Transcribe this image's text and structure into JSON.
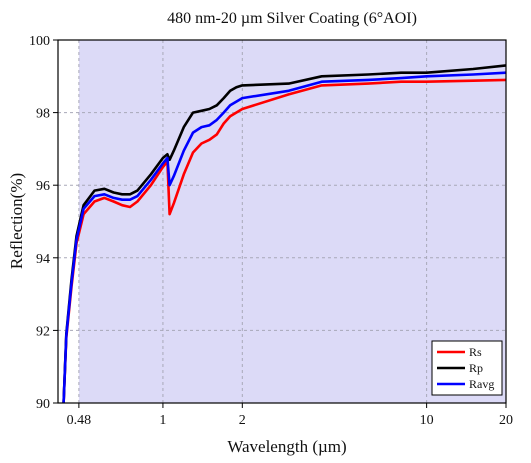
{
  "chart_data": {
    "type": "line",
    "title": "480 nm-20 µm Silver Coating (6°AOI)",
    "xlabel": "Wavelength (µm)",
    "ylabel": "Reflection(%)",
    "x_scale": "log",
    "xlim": [
      0.4,
      20
    ],
    "ylim": [
      90,
      100
    ],
    "x_ticks": [
      0.48,
      1,
      2,
      10,
      20
    ],
    "x_tick_labels": [
      "0.48",
      "1",
      "2",
      "10",
      "20"
    ],
    "y_ticks": [
      90,
      92,
      94,
      96,
      98,
      100
    ],
    "y_tick_labels": [
      "90",
      "92",
      "94",
      "96",
      "98",
      "100"
    ],
    "shaded_region": {
      "x_from": 0.48,
      "x_to": 20,
      "color": "#dcdaf7"
    },
    "grid": true,
    "legend_position": "bottom-right",
    "series": [
      {
        "name": "Rs",
        "color": "#ff0000",
        "points": [
          [
            0.42,
            90.0
          ],
          [
            0.43,
            91.8
          ],
          [
            0.45,
            93.2
          ],
          [
            0.47,
            94.4
          ],
          [
            0.5,
            95.2
          ],
          [
            0.55,
            95.55
          ],
          [
            0.6,
            95.65
          ],
          [
            0.65,
            95.55
          ],
          [
            0.7,
            95.45
          ],
          [
            0.75,
            95.4
          ],
          [
            0.8,
            95.55
          ],
          [
            0.9,
            96.0
          ],
          [
            1.0,
            96.5
          ],
          [
            1.04,
            96.65
          ],
          [
            1.06,
            95.2
          ],
          [
            1.1,
            95.5
          ],
          [
            1.2,
            96.3
          ],
          [
            1.3,
            96.9
          ],
          [
            1.4,
            97.15
          ],
          [
            1.5,
            97.25
          ],
          [
            1.6,
            97.4
          ],
          [
            1.7,
            97.7
          ],
          [
            1.8,
            97.9
          ],
          [
            2.0,
            98.1
          ],
          [
            3.0,
            98.5
          ],
          [
            4.0,
            98.75
          ],
          [
            6.0,
            98.8
          ],
          [
            8.0,
            98.85
          ],
          [
            10.0,
            98.85
          ],
          [
            15.0,
            98.88
          ],
          [
            20.0,
            98.9
          ]
        ]
      },
      {
        "name": "Rp",
        "color": "#000000",
        "points": [
          [
            0.42,
            90.0
          ],
          [
            0.43,
            91.9
          ],
          [
            0.45,
            93.4
          ],
          [
            0.47,
            94.6
          ],
          [
            0.5,
            95.45
          ],
          [
            0.55,
            95.85
          ],
          [
            0.6,
            95.9
          ],
          [
            0.65,
            95.8
          ],
          [
            0.7,
            95.75
          ],
          [
            0.75,
            95.75
          ],
          [
            0.8,
            95.85
          ],
          [
            0.9,
            96.3
          ],
          [
            1.0,
            96.75
          ],
          [
            1.04,
            96.85
          ],
          [
            1.06,
            96.7
          ],
          [
            1.1,
            96.95
          ],
          [
            1.2,
            97.6
          ],
          [
            1.3,
            98.0
          ],
          [
            1.4,
            98.05
          ],
          [
            1.5,
            98.1
          ],
          [
            1.6,
            98.2
          ],
          [
            1.7,
            98.4
          ],
          [
            1.8,
            98.6
          ],
          [
            1.9,
            98.7
          ],
          [
            2.0,
            98.75
          ],
          [
            3.0,
            98.8
          ],
          [
            4.0,
            99.0
          ],
          [
            6.0,
            99.05
          ],
          [
            8.0,
            99.1
          ],
          [
            10.0,
            99.1
          ],
          [
            15.0,
            99.2
          ],
          [
            20.0,
            99.3
          ]
        ]
      },
      {
        "name": "Ravg",
        "color": "#0000ff",
        "points": [
          [
            0.42,
            90.0
          ],
          [
            0.43,
            91.85
          ],
          [
            0.45,
            93.3
          ],
          [
            0.47,
            94.5
          ],
          [
            0.5,
            95.35
          ],
          [
            0.55,
            95.7
          ],
          [
            0.6,
            95.75
          ],
          [
            0.65,
            95.65
          ],
          [
            0.7,
            95.6
          ],
          [
            0.75,
            95.6
          ],
          [
            0.8,
            95.7
          ],
          [
            0.9,
            96.15
          ],
          [
            1.0,
            96.6
          ],
          [
            1.04,
            96.75
          ],
          [
            1.06,
            96.0
          ],
          [
            1.1,
            96.25
          ],
          [
            1.2,
            96.95
          ],
          [
            1.3,
            97.45
          ],
          [
            1.4,
            97.6
          ],
          [
            1.5,
            97.65
          ],
          [
            1.6,
            97.8
          ],
          [
            1.7,
            98.0
          ],
          [
            1.8,
            98.2
          ],
          [
            2.0,
            98.4
          ],
          [
            3.0,
            98.6
          ],
          [
            4.0,
            98.85
          ],
          [
            6.0,
            98.9
          ],
          [
            8.0,
            98.95
          ],
          [
            10.0,
            99.0
          ],
          [
            15.0,
            99.05
          ],
          [
            20.0,
            99.1
          ]
        ]
      }
    ]
  }
}
